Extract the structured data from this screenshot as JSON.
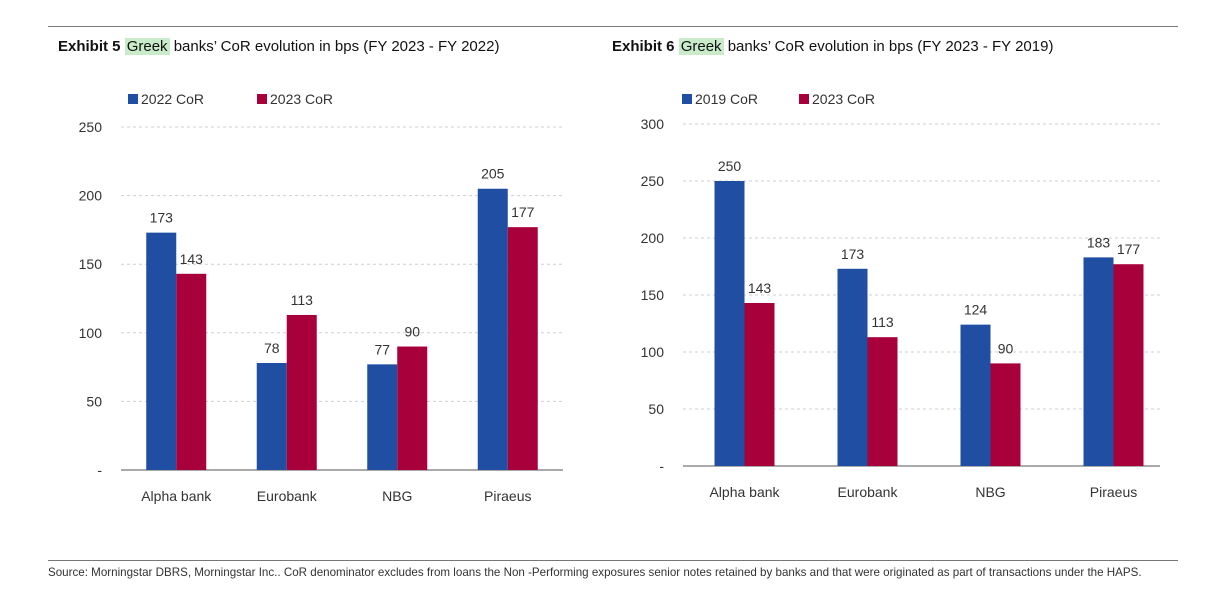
{
  "exhibit5": {
    "label": "Exhibit 5",
    "highlight": "Greek",
    "title_rest": " banks’ CoR evolution in bps (FY 2023 - FY 2022)"
  },
  "exhibit6": {
    "label": "Exhibit 6",
    "highlight": "Greek",
    "title_rest": " banks’ CoR evolution in bps (FY 2023 - FY 2019)"
  },
  "colors": {
    "blue": "#1f4ea3",
    "red": "#a8003b",
    "grid": "#cfcfcf",
    "axis": "#555555"
  },
  "chart_data": [
    {
      "type": "bar",
      "title": "Greek banks’ CoR evolution in bps (FY 2023 - FY 2022)",
      "categories": [
        "Alpha bank",
        "Eurobank",
        "NBG",
        "Piraeus"
      ],
      "series": [
        {
          "name": "2022 CoR",
          "values": [
            173,
            78,
            77,
            205
          ]
        },
        {
          "name": "2023 CoR",
          "values": [
            143,
            113,
            90,
            177
          ]
        }
      ],
      "ylim": [
        0,
        250
      ],
      "yticks": [
        0,
        50,
        100,
        150,
        200,
        250
      ],
      "ytick_labels": [
        "-",
        "50",
        "100",
        "150",
        "200",
        "250"
      ],
      "xlabel": "",
      "ylabel": "",
      "legend": "top-left",
      "grid": true
    },
    {
      "type": "bar",
      "title": "Greek banks’ CoR evolution in bps (FY 2023 - FY 2019)",
      "categories": [
        "Alpha bank",
        "Eurobank",
        "NBG",
        "Piraeus"
      ],
      "series": [
        {
          "name": "2019 CoR",
          "values": [
            250,
            173,
            124,
            183
          ]
        },
        {
          "name": "2023 CoR",
          "values": [
            143,
            113,
            90,
            177
          ]
        }
      ],
      "ylim": [
        0,
        300
      ],
      "yticks": [
        0,
        50,
        100,
        150,
        200,
        250,
        300
      ],
      "ytick_labels": [
        "-",
        "50",
        "100",
        "150",
        "200",
        "250",
        "300"
      ],
      "xlabel": "",
      "ylabel": "",
      "legend": "top-left",
      "grid": true
    }
  ],
  "source_note": "Source: Morningstar DBRS, Morningstar Inc.. CoR denominator excludes from loans the Non -Performing exposures senior notes retained by banks and that were originated as part of transactions under the HAPS."
}
